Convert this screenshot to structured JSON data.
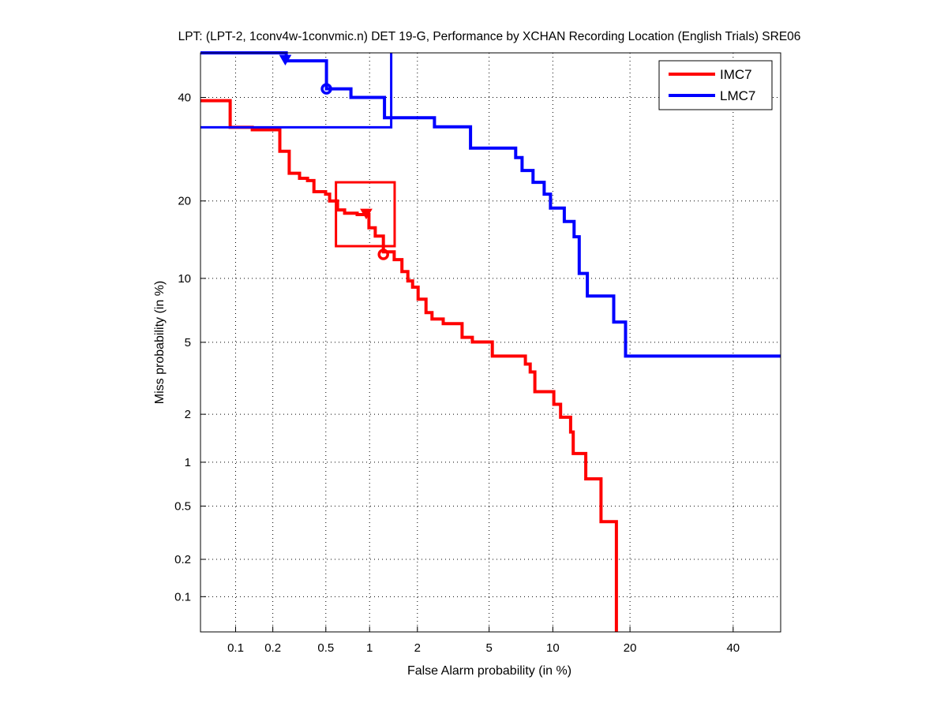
{
  "chart_data": {
    "type": "line",
    "subtype": "DET (normal deviate scale)",
    "title": "LPT: (LPT-2, 1conv4w-1convmic.n) DET 19-G,  Performance by XCHAN Recording Location (English Trials) SRE06",
    "xlabel": "False Alarm probability (in %)",
    "ylabel": "Miss probability (in %)",
    "xlim": [
      0.05,
      50.7
    ],
    "ylim": [
      0.05,
      50
    ],
    "xticks": [
      0.1,
      0.2,
      0.5,
      1,
      2,
      5,
      10,
      20,
      40
    ],
    "xtick_labels": [
      "0.1",
      "0.2",
      "0.5",
      "1",
      "2",
      "5",
      "10",
      "20",
      "40"
    ],
    "yticks": [
      0.1,
      0.2,
      0.5,
      1,
      2,
      5,
      10,
      20,
      40
    ],
    "ytick_labels": [
      "0.1",
      "0.2",
      "0.5",
      "1",
      "2",
      "5",
      "10",
      "20",
      "40"
    ],
    "grid": true,
    "legend_position": "top-right",
    "series": [
      {
        "name": "IMC7",
        "color": "#ff0000",
        "steps": [
          [
            0.05,
            39.3
          ],
          [
            0.09,
            39.3
          ],
          [
            0.09,
            33.6
          ],
          [
            0.137,
            33.6
          ],
          [
            0.137,
            33.1
          ],
          [
            0.227,
            33.1
          ],
          [
            0.227,
            28.8
          ],
          [
            0.268,
            28.8
          ],
          [
            0.268,
            24.7
          ],
          [
            0.321,
            24.7
          ],
          [
            0.321,
            23.8
          ],
          [
            0.368,
            23.8
          ],
          [
            0.368,
            23.4
          ],
          [
            0.41,
            23.4
          ],
          [
            0.41,
            21.5
          ],
          [
            0.498,
            21.5
          ],
          [
            0.498,
            21.1
          ],
          [
            0.532,
            21.1
          ],
          [
            0.532,
            20.0
          ],
          [
            0.605,
            20.0
          ],
          [
            0.605,
            18.6
          ],
          [
            0.678,
            18.6
          ],
          [
            0.678,
            18.1
          ],
          [
            0.826,
            18.1
          ],
          [
            0.826,
            17.9
          ],
          [
            0.99,
            17.9
          ],
          [
            0.99,
            16.0
          ],
          [
            1.09,
            16.0
          ],
          [
            1.09,
            14.9
          ],
          [
            1.23,
            14.9
          ],
          [
            1.23,
            12.9
          ],
          [
            1.44,
            12.9
          ],
          [
            1.44,
            12.0
          ],
          [
            1.61,
            12.0
          ],
          [
            1.61,
            10.7
          ],
          [
            1.75,
            10.7
          ],
          [
            1.75,
            9.75
          ],
          [
            1.87,
            9.75
          ],
          [
            1.87,
            9.15
          ],
          [
            2.02,
            9.15
          ],
          [
            2.02,
            8.08
          ],
          [
            2.25,
            8.08
          ],
          [
            2.25,
            7.0
          ],
          [
            2.44,
            7.0
          ],
          [
            2.44,
            6.52
          ],
          [
            2.83,
            6.52
          ],
          [
            2.83,
            6.19
          ],
          [
            3.6,
            6.19
          ],
          [
            3.6,
            5.3
          ],
          [
            4.09,
            5.3
          ],
          [
            4.09,
            5.02
          ],
          [
            5.19,
            5.02
          ],
          [
            5.19,
            4.24
          ],
          [
            7.52,
            4.24
          ],
          [
            7.52,
            3.85
          ],
          [
            7.92,
            3.85
          ],
          [
            7.92,
            3.49
          ],
          [
            8.32,
            3.49
          ],
          [
            8.32,
            2.71
          ],
          [
            10.1,
            2.71
          ],
          [
            10.1,
            2.29
          ],
          [
            10.8,
            2.29
          ],
          [
            10.8,
            1.92
          ],
          [
            11.9,
            1.92
          ],
          [
            11.9,
            1.56
          ],
          [
            12.2,
            1.56
          ],
          [
            12.2,
            1.14
          ],
          [
            13.7,
            1.14
          ],
          [
            13.7,
            0.774
          ],
          [
            15.7,
            0.774
          ],
          [
            15.7,
            0.386
          ],
          [
            17.9,
            0.386
          ],
          [
            17.9,
            0.05
          ]
        ],
        "min_dcf_box": {
          "fa": [
            0.59,
            1.45
          ],
          "miss": [
            13.6,
            23.1
          ]
        },
        "triangle_marker": [
          0.95,
          18.0
        ],
        "circle_marker": [
          1.23,
          12.6
        ]
      },
      {
        "name": "LMC7",
        "color": "#0000ff",
        "steps": [
          [
            0.05,
            50
          ],
          [
            0.254,
            50
          ],
          [
            0.254,
            48.2
          ],
          [
            0.505,
            48.2
          ],
          [
            0.505,
            41.9
          ],
          [
            0.749,
            41.9
          ],
          [
            0.749,
            40.0
          ],
          [
            1.25,
            40.0
          ],
          [
            1.25,
            35.6
          ],
          [
            2.52,
            35.6
          ],
          [
            2.52,
            33.7
          ],
          [
            4.0,
            33.7
          ],
          [
            4.0,
            29.4
          ],
          [
            6.77,
            29.4
          ],
          [
            6.77,
            27.6
          ],
          [
            7.26,
            27.6
          ],
          [
            7.26,
            25.2
          ],
          [
            8.16,
            25.2
          ],
          [
            8.16,
            23.1
          ],
          [
            9.16,
            23.1
          ],
          [
            9.16,
            21.1
          ],
          [
            9.77,
            21.1
          ],
          [
            9.77,
            18.9
          ],
          [
            11.2,
            18.9
          ],
          [
            11.2,
            16.9
          ],
          [
            12.3,
            16.9
          ],
          [
            12.3,
            14.8
          ],
          [
            12.9,
            14.8
          ],
          [
            12.9,
            10.5
          ],
          [
            13.9,
            10.5
          ],
          [
            13.9,
            8.35
          ],
          [
            17.5,
            8.35
          ],
          [
            17.5,
            6.3
          ],
          [
            19.3,
            6.3
          ],
          [
            19.3,
            4.24
          ],
          [
            50.7,
            4.24
          ]
        ],
        "min_dcf_box_edges": [
          [
            0.05,
            33.6
          ],
          [
            1.38,
            33.6
          ],
          [
            1.38,
            50
          ]
        ],
        "triangle_marker": [
          0.25,
          48.4
        ],
        "circle_marker": [
          0.505,
          41.9
        ]
      }
    ]
  }
}
